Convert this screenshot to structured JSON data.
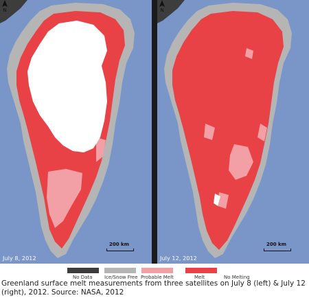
{
  "maps": [
    {
      "date_label": "July 8, 2012",
      "scale_label": "200 km",
      "north_label": "N"
    },
    {
      "date_label": "July 12, 2012",
      "scale_label": "200 km",
      "north_label": "N"
    }
  ],
  "legend": {
    "items": [
      {
        "label": "No Data",
        "color": "#3d3d3d"
      },
      {
        "label": "Ice/Snow Free",
        "color": "#b5b5b5"
      },
      {
        "label": "Probable Melt",
        "color": "#f2a0a5"
      },
      {
        "label": "Melt",
        "color": "#e84246"
      },
      {
        "label": "No Melting",
        "color": "#ffffff"
      }
    ]
  },
  "caption": "Greenland surface melt measurements from three satellites on July 8 (left) & July 12 (right), 2012. Source: NASA, 2012",
  "colors": {
    "ocean": "#7a96c8",
    "divider": "#1b1b1b",
    "land_no_data": "#3d3d3d",
    "ice_free": "#b5b5b5",
    "probable_melt": "#f2a0a5",
    "melt": "#e84246",
    "no_melting": "#ffffff"
  }
}
